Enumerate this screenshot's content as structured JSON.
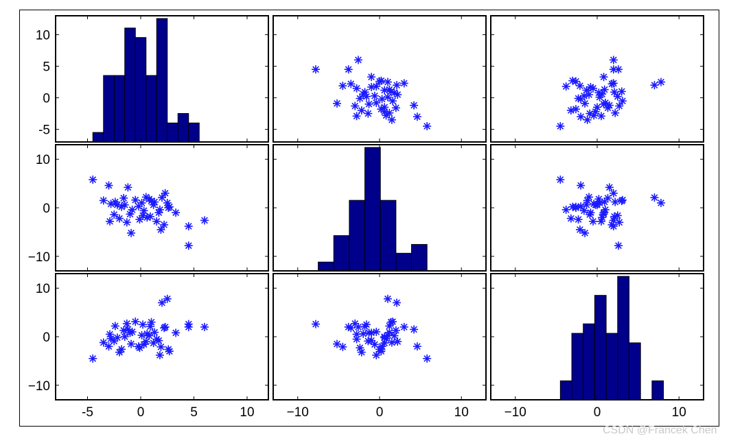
{
  "watermark": "CSDN @Francek Chen",
  "colors": {
    "background": "#ffffff",
    "axis": "#000000",
    "marker": "#1a1aff",
    "bar_fill": "#00008b",
    "bar_edge": "#000000"
  },
  "chart_data": {
    "type": "scatter-matrix",
    "marker": "asterisk",
    "grid": false,
    "variables": [
      {
        "ylim": [
          -7,
          13
        ],
        "yticks": [
          -5,
          0,
          5,
          10
        ],
        "ytick_labels": [
          "-5",
          "0",
          "5",
          "10"
        ],
        "xlim": [
          -8,
          12
        ],
        "xticks": [
          -5,
          0,
          5,
          10
        ],
        "xtick_labels": [
          "-5",
          "0",
          "5",
          "10"
        ]
      },
      {
        "ylim": [
          -13,
          13
        ],
        "yticks": [
          -10,
          0,
          10
        ],
        "ytick_labels": [
          "−10",
          "0",
          "10"
        ],
        "xlim": [
          -13,
          13
        ],
        "xticks": [
          -10,
          0,
          10
        ],
        "xtick_labels": [
          "−10",
          "0",
          "10"
        ]
      },
      {
        "ylim": [
          -13,
          13
        ],
        "yticks": [
          -10,
          0,
          10
        ],
        "ytick_labels": [
          "−10",
          "0",
          "10"
        ],
        "xlim": [
          -13,
          13
        ],
        "xticks": [
          -10,
          0,
          10
        ],
        "xtick_labels": [
          "−10",
          "0",
          "10"
        ]
      }
    ],
    "histograms": [
      {
        "variable": 0,
        "edges": [
          -4.5,
          -3.5,
          -2.5,
          -1.5,
          -0.5,
          0.5,
          1.5,
          2.5,
          3.5,
          4.5,
          5.5,
          6.5
        ],
        "counts": [
          1,
          7,
          7,
          12,
          11,
          7,
          13,
          2,
          3,
          2,
          0
        ]
      },
      {
        "variable": 1,
        "edges": [
          -7.5,
          -5.6,
          -3.7,
          -1.8,
          0.1,
          2.0,
          3.9,
          5.8
        ],
        "counts": [
          1,
          4,
          8,
          14,
          8,
          2,
          3
        ]
      },
      {
        "variable": 2,
        "edges": [
          -4.5,
          -3.1,
          -1.7,
          -0.3,
          1.1,
          2.5,
          3.9,
          5.3,
          6.7,
          8.1
        ],
        "counts": [
          2,
          7,
          8,
          11,
          7,
          13,
          6,
          0,
          2
        ]
      }
    ],
    "points": [
      [
        -4.5,
        5.8,
        -4.5
      ],
      [
        -3.0,
        4.6,
        -2.0
      ],
      [
        -1.2,
        4.2,
        1.5
      ],
      [
        2.3,
        3.0,
        2.0
      ],
      [
        1.0,
        1.4,
        3.0
      ],
      [
        0.5,
        2.2,
        -1.0
      ],
      [
        -2.4,
        1.2,
        2.2
      ],
      [
        -1.5,
        0.6,
        0.0
      ],
      [
        -0.8,
        -0.4,
        1.0
      ],
      [
        -0.2,
        0.3,
        -2.0
      ],
      [
        0.2,
        -1.6,
        2.5
      ],
      [
        1.7,
        -1.0,
        -0.8
      ],
      [
        2.6,
        0.0,
        -2.6
      ],
      [
        -2.9,
        -2.8,
        0.5
      ],
      [
        -3.5,
        1.5,
        -1.2
      ],
      [
        -2.0,
        -2.2,
        -3.2
      ],
      [
        -1.0,
        -1.3,
        0.8
      ],
      [
        0.8,
        1.8,
        0.2
      ],
      [
        1.5,
        -2.8,
        -0.5
      ],
      [
        2.2,
        -3.5,
        1.8
      ],
      [
        3.3,
        -1.0,
        0.8
      ],
      [
        2.0,
        2.1,
        7.0
      ],
      [
        2.5,
        1.0,
        7.8
      ],
      [
        4.5,
        -3.8,
        2.0
      ],
      [
        4.5,
        -7.8,
        2.6
      ],
      [
        6.0,
        -2.6,
        2.0
      ],
      [
        -2.8,
        0.8,
        -0.4
      ],
      [
        -1.8,
        0.2,
        -2.6
      ],
      [
        0.3,
        -0.6,
        -1.6
      ],
      [
        1.2,
        0.6,
        -1.3
      ],
      [
        -0.5,
        1.6,
        3.1
      ],
      [
        0.6,
        -2.0,
        0.6
      ],
      [
        -2.5,
        -1.4,
        -0.9
      ],
      [
        -1.3,
        -3.0,
        2.7
      ],
      [
        1.9,
        -4.5,
        -2.1
      ],
      [
        -0.9,
        -5.2,
        -1.5
      ],
      [
        0.1,
        1.0,
        0.3
      ],
      [
        1.8,
        -0.4,
        -3.8
      ],
      [
        -1.6,
        2.0,
        1.3
      ],
      [
        0.9,
        -1.8,
        2.1
      ],
      [
        -2.2,
        0.6,
        -0.2
      ],
      [
        2.7,
        0.2,
        -3.0
      ],
      [
        -0.1,
        -2.4,
        -2.3
      ],
      [
        1.3,
        1.2,
        0.9
      ]
    ]
  }
}
